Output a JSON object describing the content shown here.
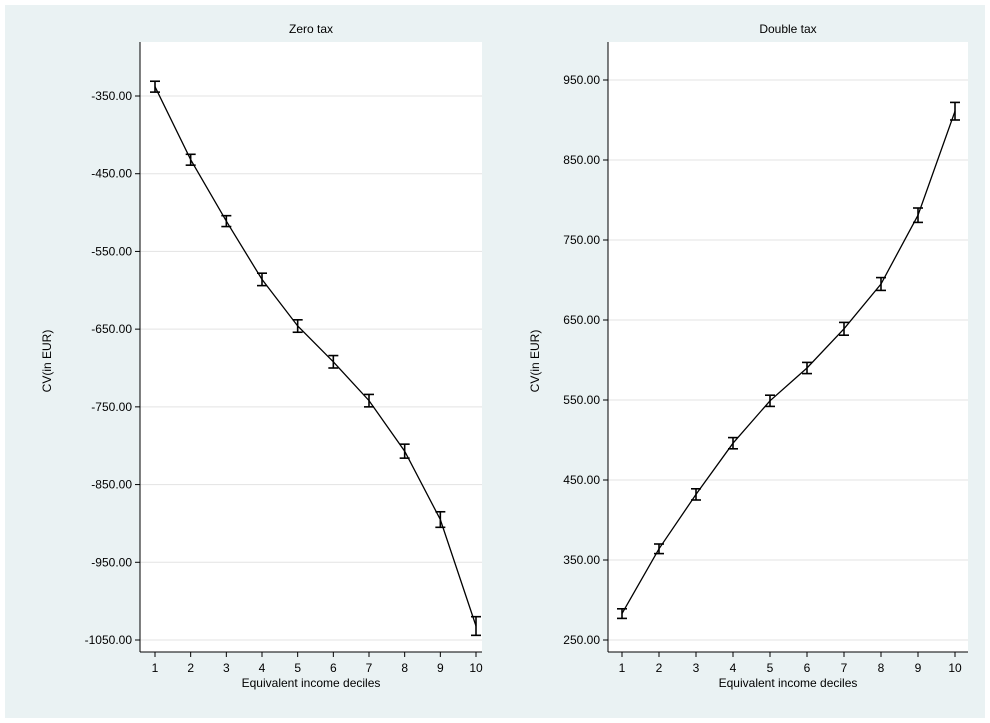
{
  "chart_data": [
    {
      "type": "line",
      "title": "Zero tax",
      "xlabel": "Equivalent income deciles",
      "ylabel": "CV(in EUR)",
      "x": [
        1,
        2,
        3,
        4,
        5,
        6,
        7,
        8,
        9,
        10
      ],
      "y": [
        -338,
        -432,
        -511,
        -586,
        -646,
        -692,
        -742,
        -807,
        -895,
        -1032
      ],
      "error": [
        7,
        7,
        7,
        8,
        8,
        8,
        8,
        9,
        10,
        12
      ],
      "yticks": [
        -350,
        -450,
        -550,
        -650,
        -750,
        -850,
        -950,
        -1050
      ],
      "ytick_labels": [
        "-350.00",
        "-450.00",
        "-550.00",
        "-650.00",
        "-750.00",
        "-850.00",
        "-950.00",
        "-1050.00"
      ],
      "xtick_labels": [
        "1",
        "2",
        "3",
        "4",
        "5",
        "6",
        "7",
        "8",
        "9",
        "10"
      ],
      "ylim": [
        -1050,
        -338
      ],
      "grid": true
    },
    {
      "type": "line",
      "title": "Double tax",
      "xlabel": "Equivalent income deciles",
      "ylabel": "CV(in EUR)",
      "x": [
        1,
        2,
        3,
        4,
        5,
        6,
        7,
        8,
        9,
        10
      ],
      "y": [
        283,
        364,
        432,
        496,
        549,
        590,
        639,
        695,
        781,
        911
      ],
      "error": [
        6,
        6,
        7,
        7,
        7,
        7,
        8,
        8,
        9,
        11
      ],
      "yticks": [
        250,
        350,
        450,
        550,
        650,
        750,
        850,
        950
      ],
      "ytick_labels": [
        "250.00",
        "350.00",
        "450.00",
        "550.00",
        "650.00",
        "750.00",
        "850.00",
        "950.00"
      ],
      "xtick_labels": [
        "1",
        "2",
        "3",
        "4",
        "5",
        "6",
        "7",
        "8",
        "9",
        "10"
      ],
      "ylim": [
        250,
        950
      ],
      "grid": true
    }
  ]
}
